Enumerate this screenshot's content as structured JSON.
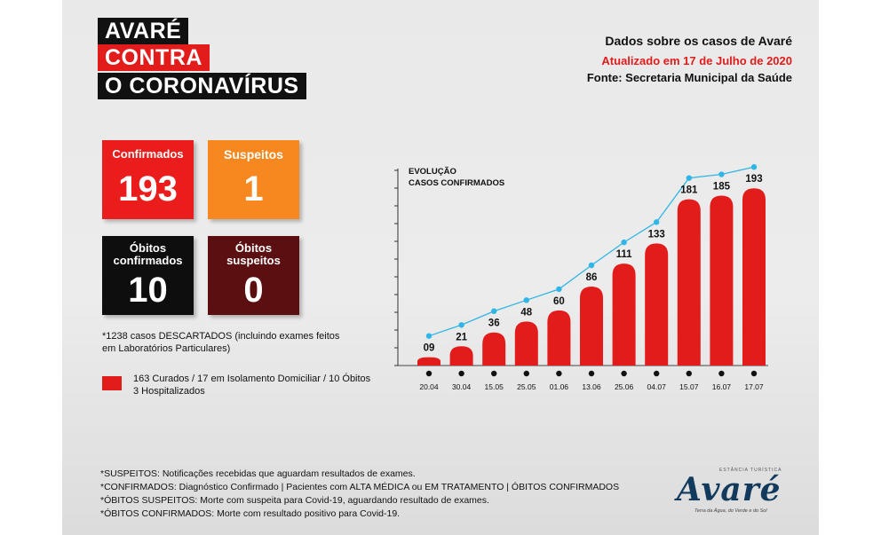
{
  "title": {
    "line1": "AVARÉ",
    "line2": "CONTRA",
    "line3": "O CORONAVÍRUS"
  },
  "header": {
    "heading": "Dados sobre os casos de Avaré",
    "updated": "Atualizado em 17 de Julho de 2020",
    "source": "Fonte: Secretaria Municipal da Saúde"
  },
  "boxes": {
    "confirmados": {
      "label": "Confirmados",
      "value": "193",
      "color": "#ea1c1c"
    },
    "suspeitos": {
      "label": "Suspeitos",
      "value": "1",
      "color": "#f7871f"
    },
    "obitos_confirmados": {
      "label_line1": "Óbitos",
      "label_line2": "confirmados",
      "value": "10",
      "color": "#0e0e0e"
    },
    "obitos_suspeitos": {
      "label_line1": "Óbitos",
      "label_line2": "suspeitos",
      "value": "0",
      "color": "#5b0f10"
    }
  },
  "descartados": {
    "line1": "*1238 casos DESCARTADOS (incluindo exames feitos",
    "line2": "em Laboratórios Particulares)"
  },
  "legend": {
    "line1": "163 Curados / 17 em Isolamento Domiciliar / 10 Óbitos",
    "line2": "3 Hospitalizados",
    "color": "#e21b1b"
  },
  "chart_data": {
    "type": "bar",
    "title_line1": "EVOLUÇÃO",
    "title_line2": "CASOS CONFIRMADOS",
    "categories": [
      "20.04",
      "30.04",
      "15.05",
      "25.05",
      "01.06",
      "13.06",
      "25.06",
      "04.07",
      "15.07",
      "16.07",
      "17.07"
    ],
    "values": [
      9,
      21,
      36,
      48,
      60,
      86,
      111,
      133,
      181,
      185,
      193
    ],
    "value_labels": [
      "09",
      "21",
      "36",
      "48",
      "60",
      "86",
      "111",
      "133",
      "181",
      "185",
      "193"
    ],
    "bar_color": "#e21b1b",
    "line_color": "#2fb5e6",
    "ylim": [
      0,
      200
    ],
    "grid": false
  },
  "footnotes": [
    "*SUSPEITOS: Notificações recebidas que aguardam resultados de exames.",
    "*CONFIRMADOS: Diagnóstico Confirmado | Pacientes com ALTA MÉDICA ou EM TRATAMENTO | ÓBITOS CONFIRMADOS",
    "*ÓBITOS SUSPEITOS: Morte com suspeita para Covid-19, aguardando resultado de exames.",
    "*ÓBITOS CONFIRMADOS: Morte com resultado positivo para Covid-19."
  ],
  "logo": {
    "word": "Avaré",
    "top": "ESTÂNCIA TURÍSTICA",
    "tagline": "Terra da Água, do Verde e do Sol"
  }
}
